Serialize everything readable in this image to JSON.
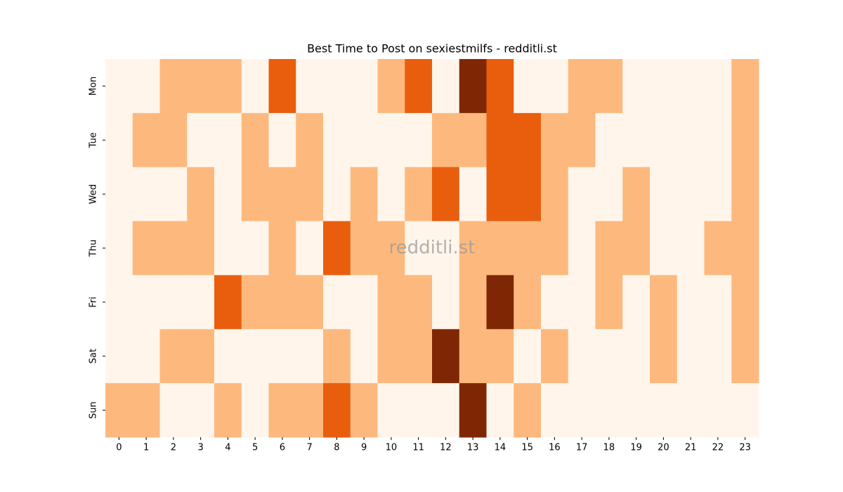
{
  "chart_data": {
    "type": "heatmap",
    "title": "Best Time to Post on sexiestmilfs - redditli.st",
    "watermark": "redditli.st",
    "x_categories": [
      "0",
      "1",
      "2",
      "3",
      "4",
      "5",
      "6",
      "7",
      "8",
      "9",
      "10",
      "11",
      "12",
      "13",
      "14",
      "15",
      "16",
      "17",
      "18",
      "19",
      "20",
      "21",
      "22",
      "23"
    ],
    "y_categories": [
      "Mon",
      "Tue",
      "Wed",
      "Thu",
      "Fri",
      "Sat",
      "Sun"
    ],
    "values": [
      [
        0,
        0,
        1,
        1,
        1,
        0,
        2,
        0,
        0,
        0,
        1,
        2,
        0,
        3,
        2,
        0,
        0,
        1,
        1,
        0,
        0,
        0,
        0,
        1
      ],
      [
        0,
        1,
        1,
        0,
        0,
        1,
        0,
        1,
        0,
        0,
        0,
        0,
        1,
        1,
        2,
        2,
        1,
        1,
        0,
        0,
        0,
        0,
        0,
        1
      ],
      [
        0,
        0,
        0,
        1,
        0,
        1,
        1,
        1,
        0,
        1,
        0,
        1,
        2,
        0,
        2,
        2,
        1,
        0,
        0,
        1,
        0,
        0,
        0,
        1
      ],
      [
        0,
        1,
        1,
        1,
        0,
        0,
        1,
        0,
        2,
        1,
        1,
        0,
        0,
        1,
        1,
        1,
        1,
        0,
        1,
        1,
        0,
        0,
        1,
        1
      ],
      [
        0,
        0,
        0,
        0,
        2,
        1,
        1,
        1,
        0,
        0,
        1,
        1,
        0,
        1,
        3,
        1,
        0,
        0,
        1,
        0,
        1,
        0,
        0,
        1
      ],
      [
        0,
        0,
        1,
        1,
        0,
        0,
        0,
        0,
        1,
        0,
        1,
        1,
        3,
        1,
        1,
        0,
        1,
        0,
        0,
        0,
        1,
        0,
        0,
        1
      ],
      [
        1,
        1,
        0,
        0,
        1,
        0,
        1,
        1,
        2,
        1,
        0,
        0,
        0,
        3,
        0,
        1,
        0,
        0,
        0,
        0,
        0,
        0,
        0,
        0
      ]
    ],
    "zlim": [
      0,
      3
    ],
    "colors": [
      "#fff5eb",
      "#fdb97d",
      "#e95e0d",
      "#7f2704"
    ]
  }
}
